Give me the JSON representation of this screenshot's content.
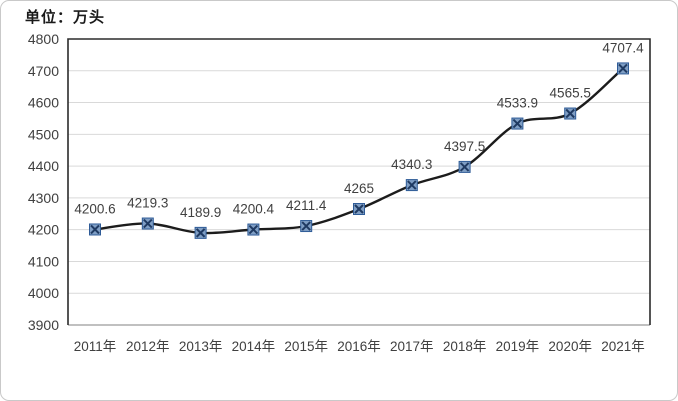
{
  "chart_data": {
    "type": "line",
    "unit_label": "单位：万头",
    "categories": [
      "2011年",
      "2012年",
      "2013年",
      "2014年",
      "2015年",
      "2016年",
      "2017年",
      "2018年",
      "2019年",
      "2020年",
      "2021年"
    ],
    "values": [
      4200.6,
      4219.3,
      4189.9,
      4200.4,
      4211.4,
      4265,
      4340.3,
      4397.5,
      4533.9,
      4565.5,
      4707.4
    ],
    "point_labels": [
      "4200.6",
      "4219.3",
      "4189.9",
      "4200.4",
      "4211.4",
      "4265",
      "4340.3",
      "4397.5",
      "4533.9",
      "4565.5",
      "4707.4"
    ],
    "ylim": [
      3900,
      4800
    ],
    "ytick_step": 100,
    "ytick_labels": [
      "3900",
      "4000",
      "4100",
      "4200",
      "4300",
      "4400",
      "4500",
      "4600",
      "4700",
      "4800"
    ],
    "grid_on": true,
    "legend": "none",
    "colors": {
      "line": "#1c1c1c",
      "marker_fill": "#7f9ec4",
      "marker_border": "#2e5b97",
      "marker_cross": "#1f3a62",
      "axis_text": "#404040",
      "data_label_text": "#404040",
      "gridline": "#d9d9d9",
      "plot_border": "#2b2b2b",
      "axis_line": "#9b9b9b"
    }
  }
}
